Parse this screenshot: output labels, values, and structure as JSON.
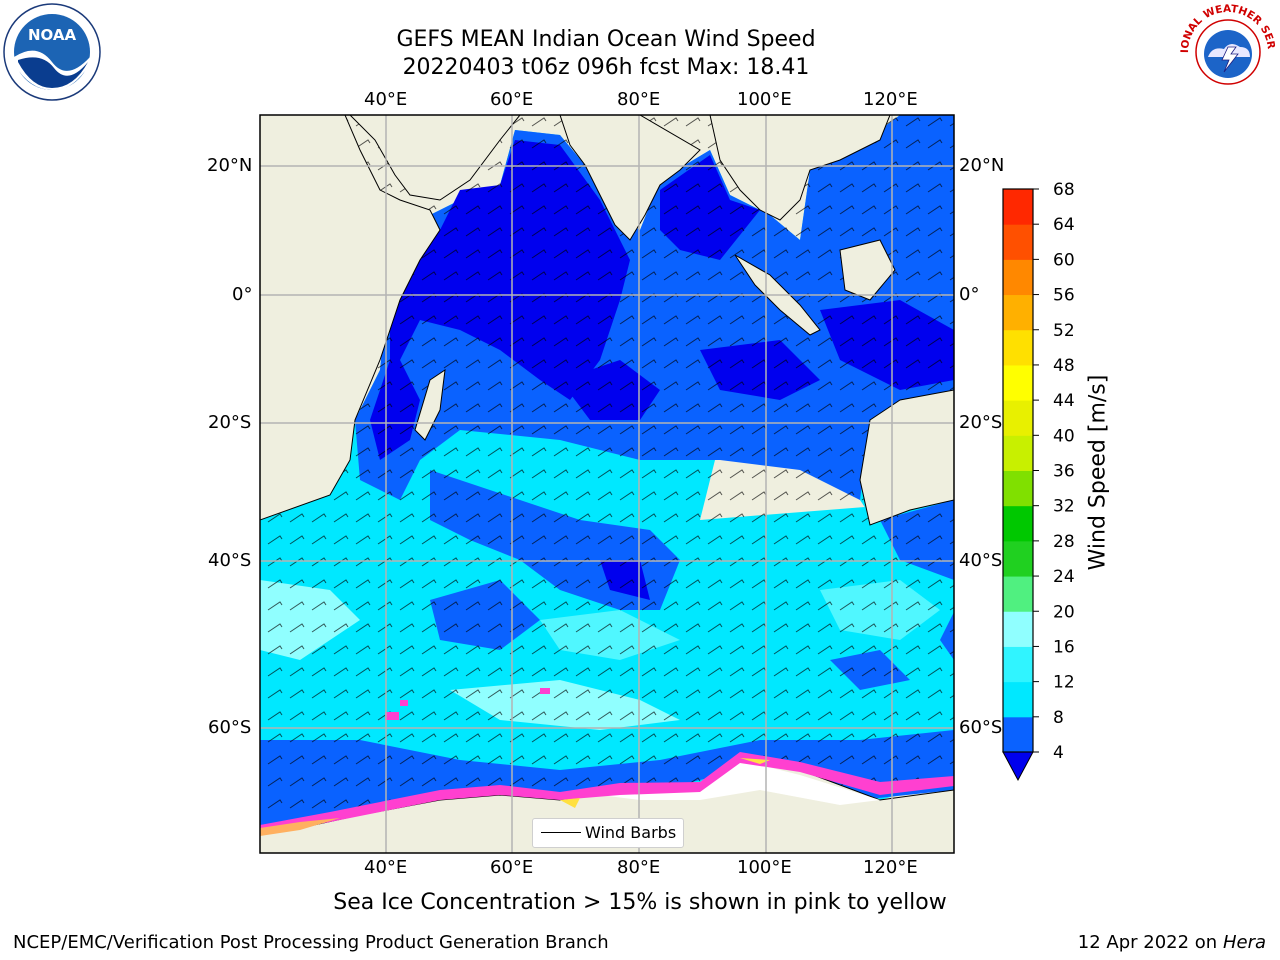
{
  "title": {
    "line1": "GEFS MEAN Indian Ocean Wind Speed",
    "line2": "20220403 t06z 096h fcst   Max: 18.41"
  },
  "map": {
    "lon_labels": [
      "40°E",
      "60°E",
      "80°E",
      "100°E",
      "120°E"
    ],
    "lon_values": [
      40,
      60,
      80,
      100,
      120
    ],
    "lat_labels": [
      "20°N",
      "0°",
      "20°S",
      "40°S",
      "60°S"
    ],
    "lat_values": [
      20,
      0,
      -20,
      -40,
      -60
    ],
    "extent": {
      "lon_min": 20,
      "lon_max": 130,
      "lat_min": -72,
      "lat_max": 27
    },
    "gridlines": true,
    "legend": {
      "label": "Wind Barbs",
      "placement": "lower-center"
    }
  },
  "colorbar": {
    "label": "Wind Speed [m/s]",
    "ticks": [
      "4",
      "8",
      "12",
      "16",
      "20",
      "24",
      "28",
      "32",
      "36",
      "40",
      "44",
      "48",
      "52",
      "56",
      "60",
      "64",
      "68"
    ],
    "colors": [
      "#0a62ff",
      "#00e8ff",
      "#30f4ff",
      "#90ffff",
      "#50f080",
      "#20d020",
      "#00c800",
      "#80e000",
      "#c8f000",
      "#e8f000",
      "#ffff00",
      "#ffe000",
      "#ffb000",
      "#ff8800",
      "#ff5000",
      "#ff2800",
      "#ff0000"
    ],
    "under_color": "#0000ee"
  },
  "colors": {
    "ocean_low": "#0a62ff",
    "ocean_calm": "#0000ee",
    "ocean_mid": "#00e8ff",
    "ocean_high": "#90ffff",
    "land": "#efefdf",
    "ice": "#ff40d0"
  },
  "footer": {
    "note": "Sea Ice Concentration > 15% is shown in pink to yellow",
    "credit": "NCEP/EMC/Verification Post Processing Product Generation Branch",
    "date_prefix": "12 Apr 2022 on",
    "date_machine": "Hera"
  },
  "logos": {
    "left": {
      "text": "NOAA",
      "icon": "noaa-logo-icon"
    },
    "right": {
      "text": "NATIONAL WEATHER SERVICE",
      "icon": "nws-logo-icon"
    }
  }
}
